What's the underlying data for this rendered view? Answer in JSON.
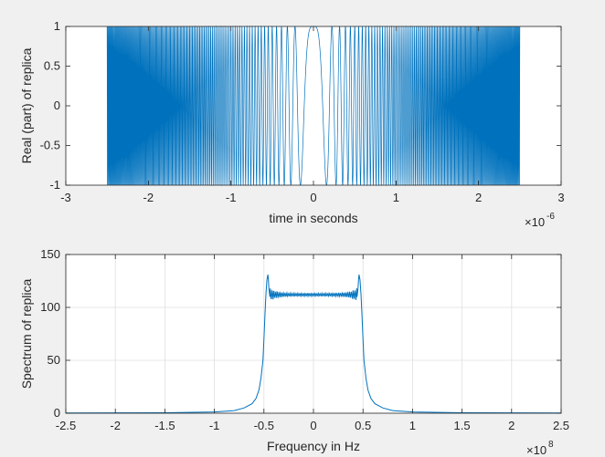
{
  "figure": {
    "background": "#f0f0f0",
    "axes_background": "#ffffff",
    "line_color": "#0072bd",
    "grid_color": "#dfdfdf"
  },
  "chart_data": [
    {
      "type": "line",
      "title": "",
      "xlabel": "time in seconds",
      "ylabel": "Real (part) of replica",
      "xlim": [
        -3e-06,
        3e-06
      ],
      "ylim": [
        -1,
        1
      ],
      "x_exponent": "-6",
      "x_ticks": [
        -3,
        -2,
        -1,
        0,
        1,
        2,
        3
      ],
      "x_tick_labels": [
        "-3",
        "-2",
        "-1",
        "0",
        "1",
        "2",
        "3"
      ],
      "y_ticks": [
        -1,
        -0.5,
        0,
        0.5,
        1
      ],
      "y_tick_labels": [
        "-1",
        "-0.5",
        "0",
        "0.5",
        "1"
      ],
      "grid": false,
      "series": [
        {
          "function": "cos(pi*k*t^2)",
          "t_start": -2.5e-06,
          "t_end": 2.5e-06,
          "chirp_rate_hz_per_s": 40000000000000.0
        }
      ]
    },
    {
      "type": "line",
      "title": "",
      "xlabel": "Frequency in Hz",
      "ylabel": "Spectrum of replica",
      "xlim": [
        -250000000.0,
        250000000.0
      ],
      "ylim": [
        0,
        150
      ],
      "x_exponent": "8",
      "x_ticks": [
        -2.5,
        -2,
        -1.5,
        -1,
        -0.5,
        0,
        0.5,
        1,
        1.5,
        2,
        2.5
      ],
      "x_tick_labels": [
        "-2.5",
        "-2",
        "-1.5",
        "-1",
        "-0.5",
        "0",
        "0.5",
        "1",
        "1.5",
        "2",
        "2.5"
      ],
      "y_ticks": [
        0,
        50,
        100,
        150
      ],
      "y_tick_labels": [
        "0",
        "50",
        "100",
        "150"
      ],
      "grid": true,
      "series": [
        {
          "shape_points": [
            [
              -250000000.0,
              0.2
            ],
            [
              -150000000.0,
              0.4
            ],
            [
              -100000000.0,
              1.2
            ],
            [
              -80000000.0,
              2.5
            ],
            [
              -70000000.0,
              5
            ],
            [
              -62000000.0,
              9
            ],
            [
              -58000000.0,
              14
            ],
            [
              -55000000.0,
              22
            ],
            [
              -53000000.0,
              33
            ],
            [
              -51000000.0,
              50
            ],
            [
              -50000000.0,
              70
            ],
            [
              -49000000.0,
              92
            ],
            [
              -48000000.0,
              112
            ],
            [
              -47000000.0,
              126
            ],
            [
              -46000000.0,
              131
            ],
            [
              -45500000.0,
              126
            ],
            [
              -45000000.0,
              118
            ],
            [
              -44000000.0,
              110
            ]
          ],
          "plateau": {
            "from": -44000000.0,
            "to": 44000000.0,
            "level": 112
          },
          "symmetric": true
        }
      ]
    }
  ]
}
